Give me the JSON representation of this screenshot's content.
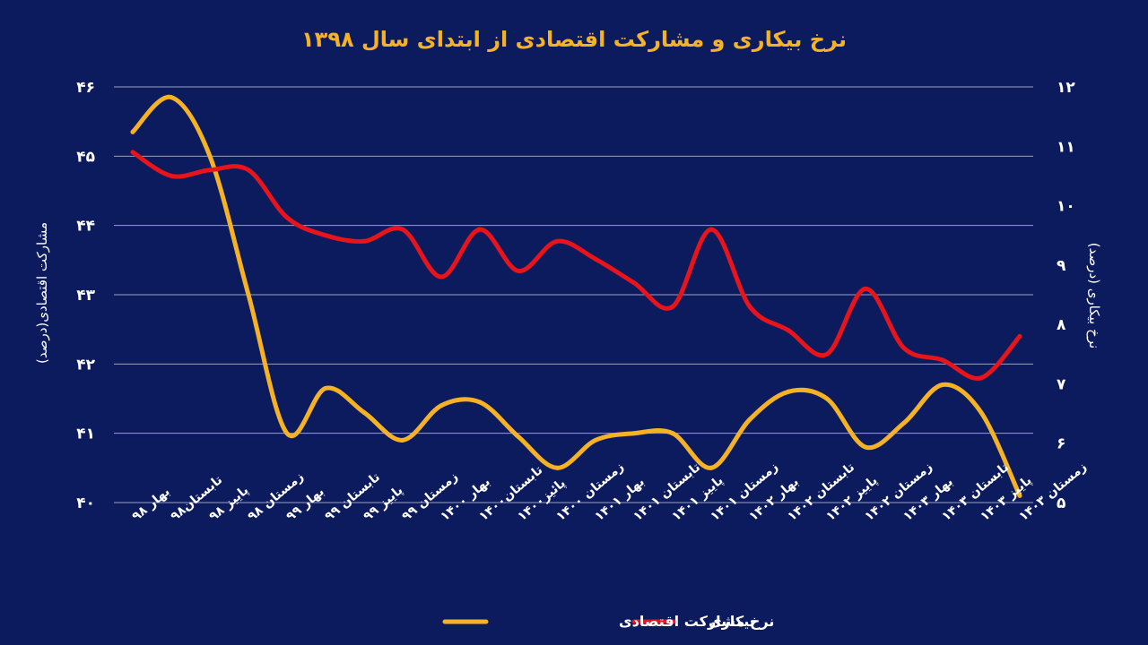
{
  "chart_data": {
    "type": "line",
    "title": "نرخ بیکاری و مشارکت اقتصادی از ابتدای سال ۱۳۹۸",
    "ylabel_left": "مشارکت اقتصادی(درصد)",
    "ylabel_right": "نرخ بیکاری (درصد)",
    "ylim_left": [
      40,
      46
    ],
    "ylim_right": [
      5,
      12
    ],
    "yticks_left": [
      "۴۰",
      "۴۱",
      "۴۲",
      "۴۳",
      "۴۴",
      "۴۵",
      "۴۶"
    ],
    "yticks_right": [
      "۵",
      "۶",
      "۷",
      "۸",
      "۹",
      "۱۰",
      "۱۱",
      "۱۲"
    ],
    "grid": true,
    "legend_position": "bottom-center",
    "categories": [
      "بهار ۹۸",
      "تابستان۹۸",
      "پاییز ۹۸",
      "زمستان ۹۸",
      "بهار ۹۹",
      "تابستان ۹۹",
      "پاییز ۹۹",
      "زمستان ۹۹",
      "بهار ۱۴۰۰",
      "تابستان۱۴۰۰",
      "پائیز۱۴۰۰",
      "زمستان ۱۴۰۰",
      "بهار ۱۴۰۱",
      "تابستان ۱۴۰۱",
      "پاییز ۱۴۰۱",
      "زمستان ۱۴۰۱",
      "بهار ۱۴۰۲",
      "تابستان ۱۴۰۲",
      "پاییز ۱۴۰۲",
      "زمستان ۱۴۰۲",
      "بهار ۱۴۰۳",
      "تابستان ۱۴۰۳",
      "پاییز ۱۴۰۳",
      "زمستان ۱۴۰۳"
    ],
    "series": [
      {
        "name": "نرخ مشارکت اقتصادی",
        "axis": "left",
        "color": "#f5b225",
        "values": [
          45.35,
          45.85,
          45.0,
          43.0,
          41.0,
          41.65,
          41.3,
          40.9,
          41.4,
          41.45,
          40.95,
          40.5,
          40.9,
          41.0,
          41.0,
          40.5,
          41.2,
          41.6,
          41.5,
          40.8,
          41.15,
          41.7,
          41.3,
          40.1
        ]
      },
      {
        "name": "بیکاری",
        "axis": "right",
        "color": "#e8141b",
        "values": [
          10.9,
          10.5,
          10.6,
          10.6,
          9.8,
          9.5,
          9.4,
          9.6,
          8.8,
          9.6,
          8.9,
          9.4,
          9.1,
          8.7,
          8.3,
          9.6,
          8.3,
          7.9,
          7.5,
          8.6,
          7.6,
          7.4,
          7.1,
          7.8
        ]
      }
    ]
  }
}
